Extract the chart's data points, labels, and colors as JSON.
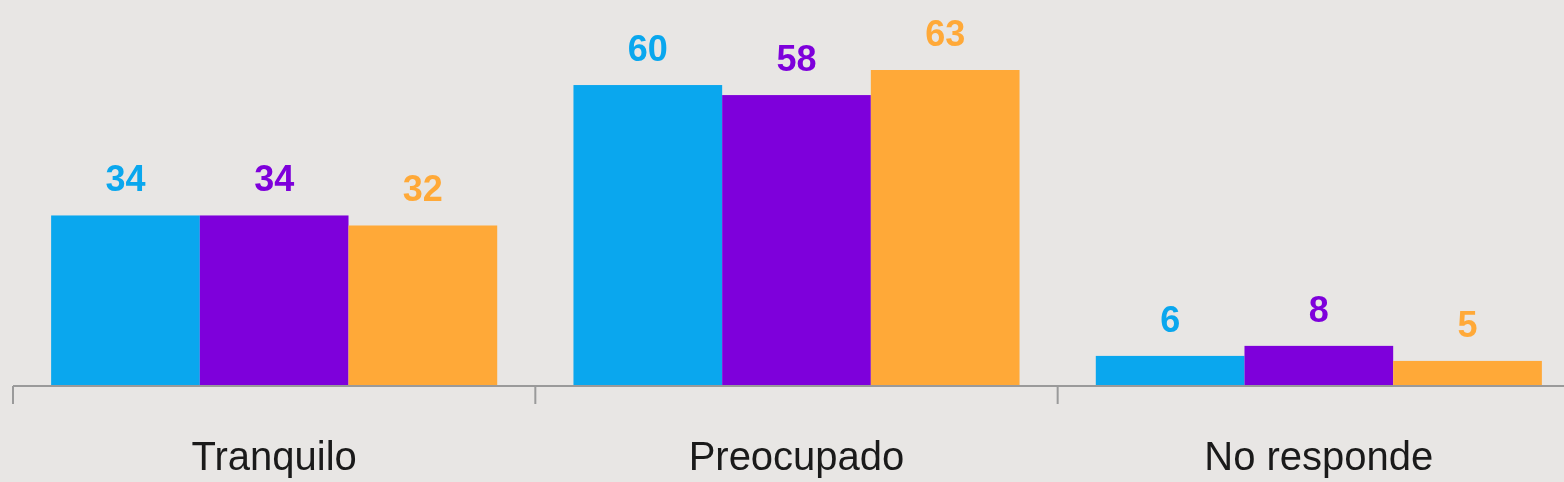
{
  "chart_data": {
    "type": "bar",
    "categories": [
      "Tranquilo",
      "Preocupado",
      "No responde"
    ],
    "series": [
      {
        "color": "#0aa7ee",
        "values": [
          34,
          60,
          6
        ]
      },
      {
        "color": "#7e00db",
        "values": [
          34,
          58,
          8
        ]
      },
      {
        "color": "#ffa938",
        "values": [
          32,
          63,
          5
        ]
      }
    ],
    "data_labels": true
  }
}
